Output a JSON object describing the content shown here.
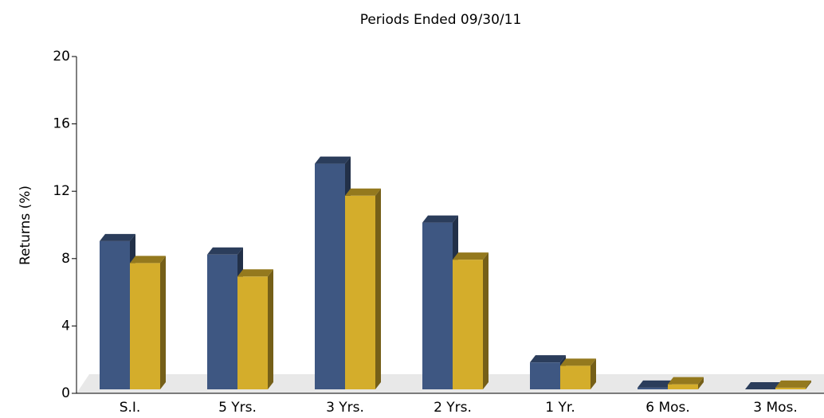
{
  "chart_data": {
    "type": "bar3d",
    "title": "Periods Ended 09/30/11",
    "y_label": "Returns (%)",
    "categories": [
      "S.I.",
      "5 Yrs.",
      "3 Yrs.",
      "2 Yrs.",
      "1 Yr.",
      "6 Mos.",
      "3 Mos."
    ],
    "series": [
      {
        "color": "#3e5782",
        "values": [
          8.8,
          8.0,
          13.4,
          9.9,
          1.6,
          0.1,
          0.0
        ]
      },
      {
        "color": "#d4ad2b",
        "values": [
          7.5,
          6.7,
          11.5,
          7.7,
          1.4,
          0.3,
          0.1
        ]
      }
    ],
    "ylim": [
      0,
      20
    ],
    "yticks": [
      0,
      4,
      8,
      12,
      16,
      20
    ]
  }
}
